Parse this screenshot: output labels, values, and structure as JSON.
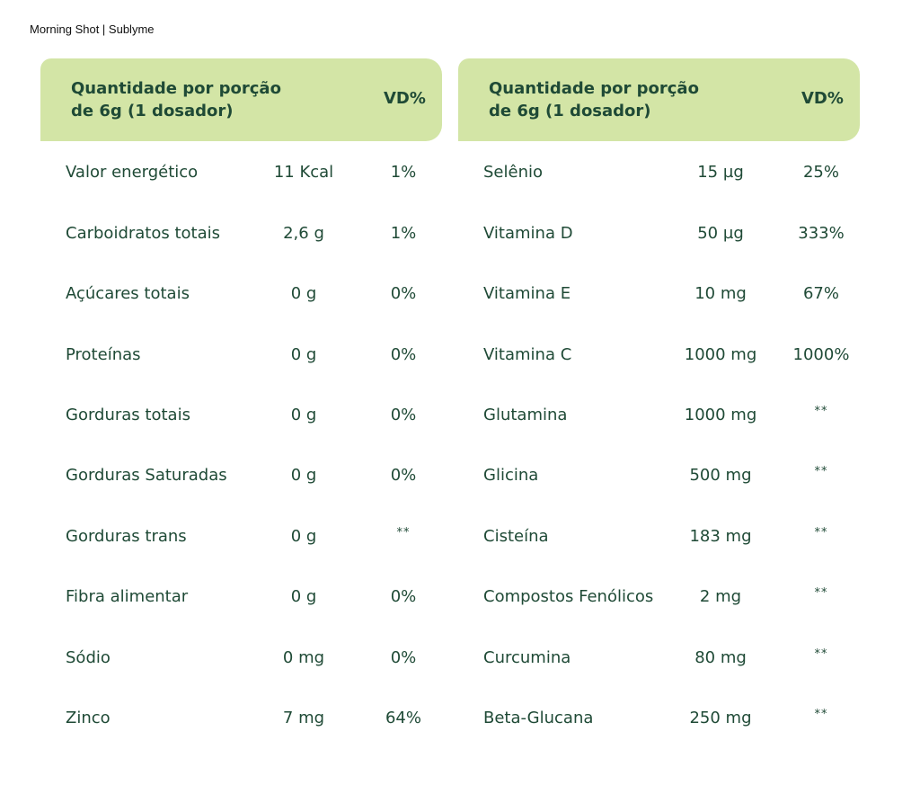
{
  "document": {
    "title": "Morning Shot | Sublyme"
  },
  "colors": {
    "header_bg": "#d3e5a6",
    "text": "#1f4a36"
  },
  "tables": [
    {
      "header": {
        "quantity_label_line1": "Quantidade por porção",
        "quantity_label_line2": "de 6g (1 dosador)",
        "vd_label": "VD%"
      },
      "rows": [
        {
          "name": "Valor energético",
          "amount": "11 Kcal",
          "vd": "1%"
        },
        {
          "name": "Carboidratos totais",
          "amount": "2,6 g",
          "vd": "1%"
        },
        {
          "name": "Açúcares totais",
          "amount": "0 g",
          "vd": "0%"
        },
        {
          "name": "Proteínas",
          "amount": "0 g",
          "vd": "0%"
        },
        {
          "name": "Gorduras totais",
          "amount": "0 g",
          "vd": "0%"
        },
        {
          "name": "Gorduras Saturadas",
          "amount": "0 g",
          "vd": "0%"
        },
        {
          "name": "Gorduras trans",
          "amount": "0 g",
          "vd": "**"
        },
        {
          "name": "Fibra alimentar",
          "amount": "0 g",
          "vd": "0%"
        },
        {
          "name": "Sódio",
          "amount": "0 mg",
          "vd": "0%"
        },
        {
          "name": "Zinco",
          "amount": "7 mg",
          "vd": "64%"
        }
      ]
    },
    {
      "header": {
        "quantity_label_line1": "Quantidade por porção",
        "quantity_label_line2": "de 6g (1 dosador)",
        "vd_label": "VD%"
      },
      "rows": [
        {
          "name": "Selênio",
          "amount": "15 µg",
          "vd": "25%"
        },
        {
          "name": "Vitamina D",
          "amount": "50 µg",
          "vd": "333%"
        },
        {
          "name": "Vitamina E",
          "amount": "10 mg",
          "vd": "67%"
        },
        {
          "name": "Vitamina C",
          "amount": "1000 mg",
          "vd": "1000%"
        },
        {
          "name": "Glutamina",
          "amount": "1000 mg",
          "vd": "**"
        },
        {
          "name": "Glicina",
          "amount": "500 mg",
          "vd": "**"
        },
        {
          "name": "Cisteína",
          "amount": "183 mg",
          "vd": "**"
        },
        {
          "name": "Compostos Fenólicos",
          "amount": "2 mg",
          "vd": "**"
        },
        {
          "name": "Curcumina",
          "amount": "80 mg",
          "vd": "**"
        },
        {
          "name": "Beta-Glucana",
          "amount": "250 mg",
          "vd": "**"
        }
      ]
    }
  ]
}
